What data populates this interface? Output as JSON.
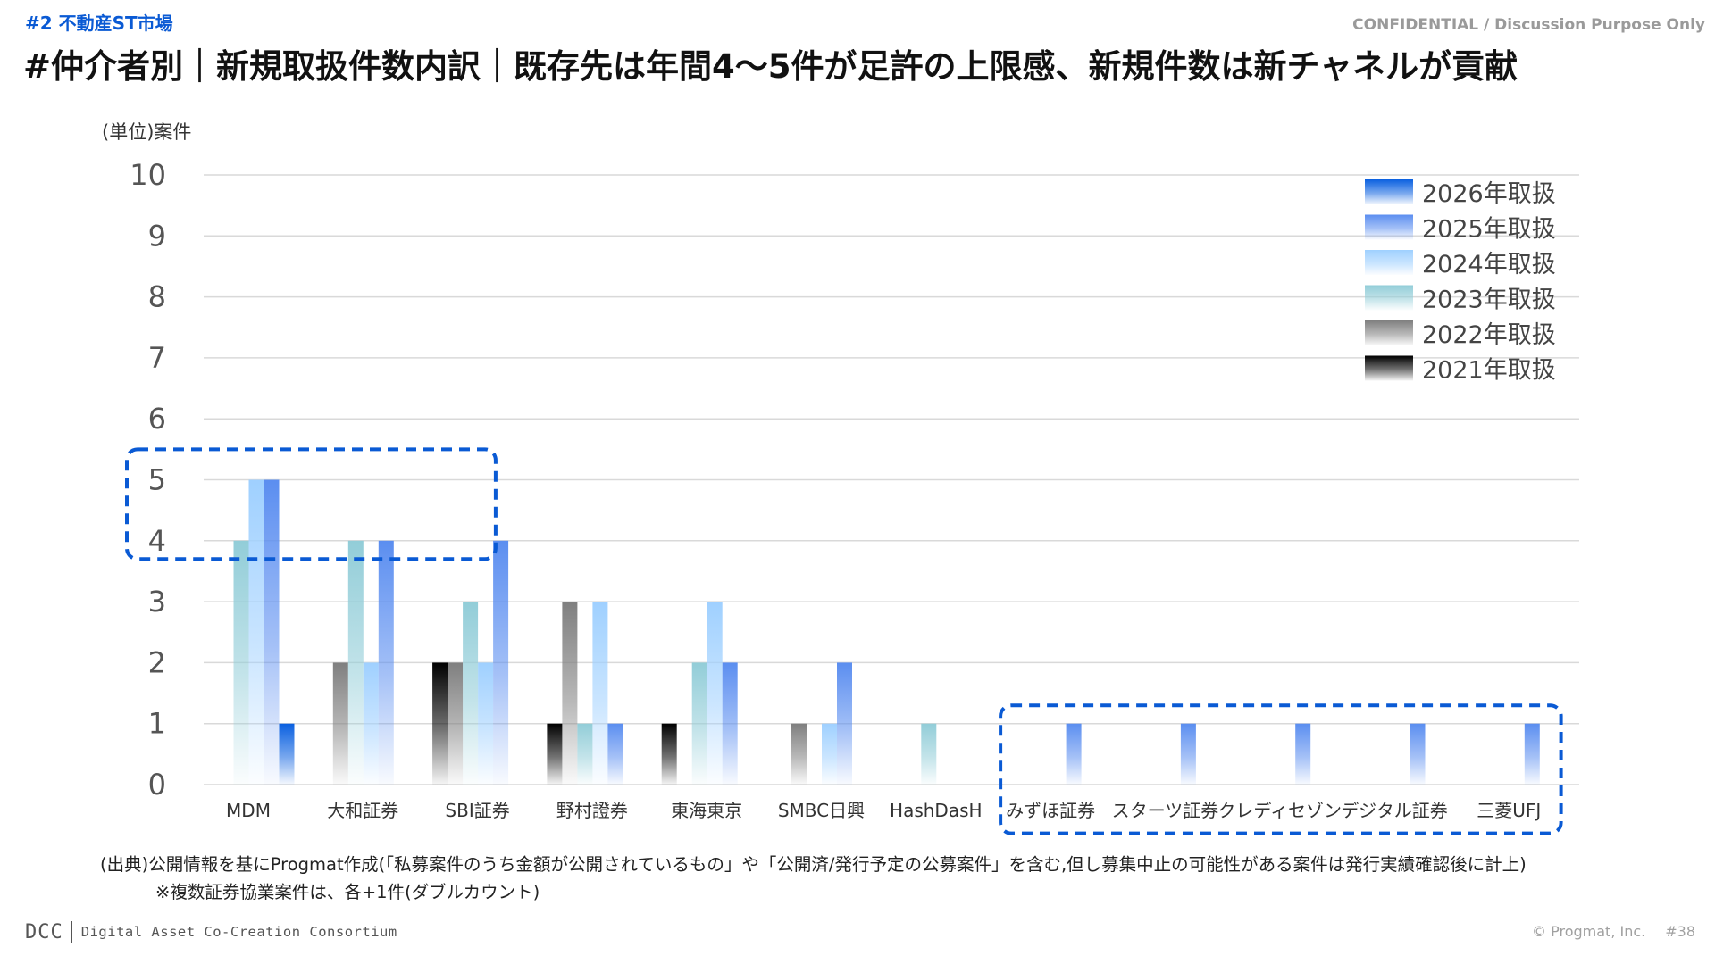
{
  "header": {
    "section_tag": "#2 不動産ST市場",
    "confidential": "CONFIDENTIAL / Discussion Purpose Only",
    "title": "#仲介者別｜新規取扱件数内訳｜既存先は年間4～5件が足許の上限感、新規件数は新チャネルが貢献"
  },
  "chart_data": {
    "type": "bar",
    "unit_label": "(単位)案件",
    "ylim": [
      0,
      10
    ],
    "yticks": [
      0,
      1,
      2,
      3,
      4,
      5,
      6,
      7,
      8,
      9,
      10
    ],
    "grid": true,
    "legend_position": "top-right",
    "categories": [
      "MDM",
      "大和証券",
      "SBI証券",
      "野村證券",
      "東海東京",
      "SMBC日興",
      "HashDasH",
      "みずほ証券",
      "スターツ証券",
      "クレディセゾン",
      "デジタル証券",
      "三菱UFJ"
    ],
    "series": [
      {
        "name": "2021年取扱",
        "color": "#000000",
        "values": [
          0,
          0,
          2,
          1,
          1,
          0,
          0,
          0,
          0,
          0,
          0,
          0
        ]
      },
      {
        "name": "2022年取扱",
        "color": "#7f7f7f",
        "values": [
          0,
          2,
          2,
          3,
          0,
          1,
          0,
          0,
          0,
          0,
          0,
          0
        ]
      },
      {
        "name": "2023年取扱",
        "color": "#92cdd8",
        "values": [
          4,
          4,
          3,
          1,
          2,
          0,
          1,
          0,
          0,
          0,
          0,
          0
        ]
      },
      {
        "name": "2024年取扱",
        "color": "#9fd0ff",
        "values": [
          5,
          2,
          2,
          3,
          3,
          1,
          0,
          0,
          0,
          0,
          0,
          0
        ]
      },
      {
        "name": "2025年取扱",
        "color": "#5b8ef0",
        "values": [
          5,
          4,
          4,
          1,
          2,
          2,
          0,
          1,
          1,
          1,
          1,
          1
        ]
      },
      {
        "name": "2026年取扱",
        "color": "#0a60e0",
        "values": [
          1,
          0,
          0,
          0,
          0,
          0,
          0,
          0,
          0,
          0,
          0,
          0
        ]
      }
    ],
    "highlight_groups": [
      {
        "categories": [
          "MDM",
          "大和証券",
          "SBI証券"
        ],
        "y_range": [
          3.7,
          5.5
        ]
      },
      {
        "categories": [
          "みずほ証券",
          "スターツ証券",
          "クレディセゾン",
          "デジタル証券",
          "三菱UFJ"
        ],
        "y_range": [
          -0.8,
          1.3
        ]
      }
    ],
    "highlight_color": "#0a5ad4"
  },
  "footer": {
    "source": "(出典)公開情報を基にProgmat作成(「私募案件のうち金額が公開されているもの」や「公開済/発行予定の公募案件」を含む,但し募集中止の可能性がある案件は発行実績確認後に計上)",
    "note": "※複数証券協業案件は、各+1件(ダブルカウント)",
    "logo_mark": "DCC",
    "logo_name": "Digital Asset Co-Creation Consortium",
    "copyright": "© Progmat, Inc.",
    "page_number": "#38"
  }
}
